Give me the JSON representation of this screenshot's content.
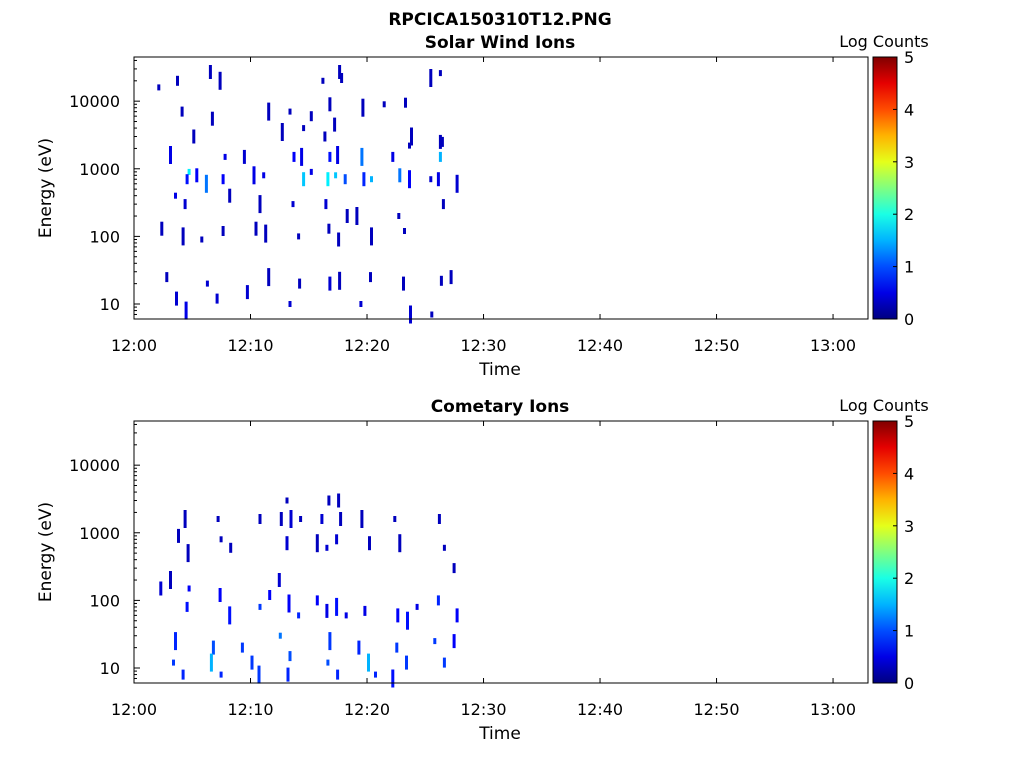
{
  "figure_title": "RPCICA150310T12.PNG",
  "chart_data": [
    {
      "type": "heatmap",
      "title": "Solar Wind Ions",
      "xlabel": "Time",
      "ylabel": "Energy (eV)",
      "yscale": "log",
      "ylim": [
        6,
        45000
      ],
      "xlim": [
        "12:00",
        "13:03"
      ],
      "x_tick_labels": [
        "12:00",
        "12:10",
        "12:20",
        "12:30",
        "12:40",
        "12:50",
        "13:00"
      ],
      "y_tick_labels": [
        "10",
        "100",
        "1000",
        "10000"
      ],
      "colorbar": {
        "label": "Log Counts",
        "min": 0,
        "max": 5,
        "ticks": [
          "0",
          "1",
          "2",
          "3",
          "4",
          "5"
        ],
        "colormap": "jet"
      },
      "data_time_range": [
        "12:02",
        "12:27"
      ],
      "cells": [
        {
          "t": "12:02",
          "e": 16000,
          "v": 0.3
        },
        {
          "t": "12:03",
          "e": 20000,
          "v": 0.3
        },
        {
          "t": "12:06",
          "e": 27000,
          "v": 0.3
        },
        {
          "t": "12:07",
          "e": 20000,
          "v": 0.3
        },
        {
          "t": "12:16",
          "e": 20000,
          "v": 0.3
        },
        {
          "t": "12:17",
          "e": 22000,
          "v": 0.3
        },
        {
          "t": "12:17",
          "e": 27000,
          "v": 0.3
        },
        {
          "t": "12:25",
          "e": 22000,
          "v": 0.3
        },
        {
          "t": "12:26",
          "e": 26000,
          "v": 0.3
        },
        {
          "t": "12:04",
          "e": 7000,
          "v": 0.3
        },
        {
          "t": "12:06",
          "e": 5500,
          "v": 0.3
        },
        {
          "t": "12:11",
          "e": 7000,
          "v": 0.3
        },
        {
          "t": "12:13",
          "e": 7000,
          "v": 0.3
        },
        {
          "t": "12:15",
          "e": 6000,
          "v": 0.3
        },
        {
          "t": "12:16",
          "e": 9000,
          "v": 0.3
        },
        {
          "t": "12:19",
          "e": 8000,
          "v": 0.3
        },
        {
          "t": "12:21",
          "e": 9000,
          "v": 0.3
        },
        {
          "t": "12:23",
          "e": 9500,
          "v": 0.3
        },
        {
          "t": "12:05",
          "e": 3000,
          "v": 0.3
        },
        {
          "t": "12:12",
          "e": 3500,
          "v": 0.3
        },
        {
          "t": "12:14",
          "e": 4000,
          "v": 0.3
        },
        {
          "t": "12:16",
          "e": 3000,
          "v": 0.3
        },
        {
          "t": "12:17",
          "e": 4500,
          "v": 0.3
        },
        {
          "t": "12:23",
          "e": 3000,
          "v": 0.3
        },
        {
          "t": "12:23",
          "e": 2200,
          "v": 0.3
        },
        {
          "t": "12:26",
          "e": 2500,
          "v": 0.3
        },
        {
          "t": "12:26",
          "e": 2500,
          "v": 0.3
        },
        {
          "t": "12:03",
          "e": 1600,
          "v": 0.5
        },
        {
          "t": "12:04",
          "e": 900,
          "v": 1.8
        },
        {
          "t": "12:04",
          "e": 700,
          "v": 0.7
        },
        {
          "t": "12:05",
          "e": 800,
          "v": 0.6
        },
        {
          "t": "12:06",
          "e": 600,
          "v": 1.2
        },
        {
          "t": "12:07",
          "e": 1500,
          "v": 0.5
        },
        {
          "t": "12:07",
          "e": 700,
          "v": 0.6
        },
        {
          "t": "12:09",
          "e": 1500,
          "v": 0.4
        },
        {
          "t": "12:10",
          "e": 800,
          "v": 0.5
        },
        {
          "t": "12:11",
          "e": 800,
          "v": 0.5
        },
        {
          "t": "12:13",
          "e": 1500,
          "v": 0.6
        },
        {
          "t": "12:14",
          "e": 700,
          "v": 1.6
        },
        {
          "t": "12:14",
          "e": 1500,
          "v": 0.5
        },
        {
          "t": "12:15",
          "e": 900,
          "v": 0.5
        },
        {
          "t": "12:16",
          "e": 1500,
          "v": 0.7
        },
        {
          "t": "12:16",
          "e": 700,
          "v": 1.8
        },
        {
          "t": "12:17",
          "e": 1600,
          "v": 0.5
        },
        {
          "t": "12:17",
          "e": 800,
          "v": 1.6
        },
        {
          "t": "12:18",
          "e": 700,
          "v": 1.0
        },
        {
          "t": "12:19",
          "e": 700,
          "v": 0.8
        },
        {
          "t": "12:19",
          "e": 1500,
          "v": 1.2
        },
        {
          "t": "12:20",
          "e": 700,
          "v": 1.5
        },
        {
          "t": "12:22",
          "e": 1500,
          "v": 0.5
        },
        {
          "t": "12:22",
          "e": 800,
          "v": 1.2
        },
        {
          "t": "12:23",
          "e": 700,
          "v": 0.6
        },
        {
          "t": "12:25",
          "e": 700,
          "v": 0.4
        },
        {
          "t": "12:26",
          "e": 1500,
          "v": 1.5
        },
        {
          "t": "12:26",
          "e": 700,
          "v": 0.5
        },
        {
          "t": "12:27",
          "e": 600,
          "v": 0.4
        },
        {
          "t": "12:03",
          "e": 400,
          "v": 0.5
        },
        {
          "t": "12:04",
          "e": 300,
          "v": 0.4
        },
        {
          "t": "12:08",
          "e": 400,
          "v": 0.3
        },
        {
          "t": "12:10",
          "e": 300,
          "v": 0.3
        },
        {
          "t": "12:13",
          "e": 300,
          "v": 0.4
        },
        {
          "t": "12:16",
          "e": 300,
          "v": 0.4
        },
        {
          "t": "12:18",
          "e": 200,
          "v": 0.3
        },
        {
          "t": "12:19",
          "e": 200,
          "v": 0.3
        },
        {
          "t": "12:22",
          "e": 200,
          "v": 0.3
        },
        {
          "t": "12:26",
          "e": 300,
          "v": 0.3
        },
        {
          "t": "12:02",
          "e": 130,
          "v": 0.3
        },
        {
          "t": "12:04",
          "e": 100,
          "v": 0.3
        },
        {
          "t": "12:05",
          "e": 90,
          "v": 0.3
        },
        {
          "t": "12:07",
          "e": 120,
          "v": 0.3
        },
        {
          "t": "12:10",
          "e": 130,
          "v": 0.3
        },
        {
          "t": "12:11",
          "e": 110,
          "v": 0.3
        },
        {
          "t": "12:14",
          "e": 100,
          "v": 0.3
        },
        {
          "t": "12:16",
          "e": 130,
          "v": 0.3
        },
        {
          "t": "12:17",
          "e": 90,
          "v": 0.3
        },
        {
          "t": "12:20",
          "e": 100,
          "v": 0.3
        },
        {
          "t": "12:23",
          "e": 120,
          "v": 0.3
        },
        {
          "t": "12:02",
          "e": 25,
          "v": 0.3
        },
        {
          "t": "12:03",
          "e": 12,
          "v": 0.4
        },
        {
          "t": "12:04",
          "e": 8,
          "v": 0.5
        },
        {
          "t": "12:06",
          "e": 20,
          "v": 0.4
        },
        {
          "t": "12:07",
          "e": 12,
          "v": 0.4
        },
        {
          "t": "12:09",
          "e": 15,
          "v": 0.4
        },
        {
          "t": "12:11",
          "e": 25,
          "v": 0.3
        },
        {
          "t": "12:13",
          "e": 10,
          "v": 0.4
        },
        {
          "t": "12:14",
          "e": 20,
          "v": 0.3
        },
        {
          "t": "12:16",
          "e": 20,
          "v": 0.4
        },
        {
          "t": "12:17",
          "e": 22,
          "v": 0.3
        },
        {
          "t": "12:19",
          "e": 10,
          "v": 0.4
        },
        {
          "t": "12:20",
          "e": 25,
          "v": 0.3
        },
        {
          "t": "12:23",
          "e": 20,
          "v": 0.3
        },
        {
          "t": "12:23",
          "e": 7,
          "v": 0.4
        },
        {
          "t": "12:25",
          "e": 7,
          "v": 0.3
        },
        {
          "t": "12:26",
          "e": 22,
          "v": 0.3
        },
        {
          "t": "12:27",
          "e": 25,
          "v": 0.3
        }
      ]
    },
    {
      "type": "heatmap",
      "title": "Cometary Ions",
      "xlabel": "Time",
      "ylabel": "Energy (eV)",
      "yscale": "log",
      "ylim": [
        6,
        45000
      ],
      "xlim": [
        "12:00",
        "13:03"
      ],
      "x_tick_labels": [
        "12:00",
        "12:10",
        "12:20",
        "12:30",
        "12:40",
        "12:50",
        "13:00"
      ],
      "y_tick_labels": [
        "10",
        "100",
        "1000",
        "10000"
      ],
      "colorbar": {
        "label": "Log Counts",
        "min": 0,
        "max": 5,
        "ticks": [
          "0",
          "1",
          "2",
          "3",
          "4",
          "5"
        ],
        "colormap": "jet"
      },
      "data_time_range": [
        "12:02",
        "12:27"
      ],
      "cells": [
        {
          "t": "12:13",
          "e": 3000,
          "v": 0.3
        },
        {
          "t": "12:16",
          "e": 3000,
          "v": 0.3
        },
        {
          "t": "12:17",
          "e": 3000,
          "v": 0.3
        },
        {
          "t": "12:04",
          "e": 1600,
          "v": 0.3
        },
        {
          "t": "12:07",
          "e": 1600,
          "v": 0.3
        },
        {
          "t": "12:10",
          "e": 1600,
          "v": 0.3
        },
        {
          "t": "12:12",
          "e": 1600,
          "v": 0.3
        },
        {
          "t": "12:13",
          "e": 1600,
          "v": 0.4
        },
        {
          "t": "12:14",
          "e": 1600,
          "v": 0.3
        },
        {
          "t": "12:16",
          "e": 1600,
          "v": 0.4
        },
        {
          "t": "12:17",
          "e": 1600,
          "v": 0.3
        },
        {
          "t": "12:19",
          "e": 1600,
          "v": 0.3
        },
        {
          "t": "12:22",
          "e": 1600,
          "v": 0.3
        },
        {
          "t": "12:26",
          "e": 1600,
          "v": 0.3
        },
        {
          "t": "12:03",
          "e": 900,
          "v": 0.3
        },
        {
          "t": "12:04",
          "e": 500,
          "v": 0.3
        },
        {
          "t": "12:07",
          "e": 800,
          "v": 0.3
        },
        {
          "t": "12:08",
          "e": 600,
          "v": 0.3
        },
        {
          "t": "12:13",
          "e": 700,
          "v": 0.4
        },
        {
          "t": "12:15",
          "e": 700,
          "v": 0.3
        },
        {
          "t": "12:16",
          "e": 600,
          "v": 0.4
        },
        {
          "t": "12:17",
          "e": 800,
          "v": 0.4
        },
        {
          "t": "12:20",
          "e": 700,
          "v": 0.3
        },
        {
          "t": "12:22",
          "e": 700,
          "v": 0.3
        },
        {
          "t": "12:26",
          "e": 600,
          "v": 0.3
        },
        {
          "t": "12:27",
          "e": 300,
          "v": 0.3
        },
        {
          "t": "12:02",
          "e": 150,
          "v": 0.4
        },
        {
          "t": "12:03",
          "e": 200,
          "v": 0.3
        },
        {
          "t": "12:04",
          "e": 150,
          "v": 0.6
        },
        {
          "t": "12:04",
          "e": 80,
          "v": 0.7
        },
        {
          "t": "12:07",
          "e": 120,
          "v": 0.6
        },
        {
          "t": "12:08",
          "e": 60,
          "v": 0.7
        },
        {
          "t": "12:10",
          "e": 80,
          "v": 0.9
        },
        {
          "t": "12:11",
          "e": 120,
          "v": 0.6
        },
        {
          "t": "12:12",
          "e": 200,
          "v": 0.4
        },
        {
          "t": "12:13",
          "e": 90,
          "v": 0.6
        },
        {
          "t": "12:14",
          "e": 60,
          "v": 0.8
        },
        {
          "t": "12:15",
          "e": 100,
          "v": 0.6
        },
        {
          "t": "12:16",
          "e": 70,
          "v": 0.5
        },
        {
          "t": "12:17",
          "e": 80,
          "v": 0.7
        },
        {
          "t": "12:18",
          "e": 60,
          "v": 0.5
        },
        {
          "t": "12:19",
          "e": 70,
          "v": 0.5
        },
        {
          "t": "12:22",
          "e": 60,
          "v": 0.6
        },
        {
          "t": "12:23",
          "e": 50,
          "v": 0.7
        },
        {
          "t": "12:24",
          "e": 80,
          "v": 0.5
        },
        {
          "t": "12:26",
          "e": 100,
          "v": 0.8
        },
        {
          "t": "12:27",
          "e": 60,
          "v": 0.6
        },
        {
          "t": "12:03",
          "e": 25,
          "v": 0.8
        },
        {
          "t": "12:03",
          "e": 12,
          "v": 0.9
        },
        {
          "t": "12:04",
          "e": 8,
          "v": 0.8
        },
        {
          "t": "12:06",
          "e": 20,
          "v": 1.0
        },
        {
          "t": "12:06",
          "e": 12,
          "v": 1.5
        },
        {
          "t": "12:07",
          "e": 8,
          "v": 0.8
        },
        {
          "t": "12:09",
          "e": 20,
          "v": 0.9
        },
        {
          "t": "12:10",
          "e": 12,
          "v": 0.9
        },
        {
          "t": "12:10",
          "e": 8,
          "v": 0.9
        },
        {
          "t": "12:12",
          "e": 30,
          "v": 1.2
        },
        {
          "t": "12:13",
          "e": 15,
          "v": 1.0
        },
        {
          "t": "12:13",
          "e": 8,
          "v": 0.8
        },
        {
          "t": "12:16",
          "e": 25,
          "v": 0.9
        },
        {
          "t": "12:16",
          "e": 12,
          "v": 1.0
        },
        {
          "t": "12:17",
          "e": 8,
          "v": 0.8
        },
        {
          "t": "12:19",
          "e": 20,
          "v": 0.8
        },
        {
          "t": "12:20",
          "e": 12,
          "v": 1.5
        },
        {
          "t": "12:20",
          "e": 8,
          "v": 0.8
        },
        {
          "t": "12:22",
          "e": 20,
          "v": 0.9
        },
        {
          "t": "12:23",
          "e": 12,
          "v": 0.9
        },
        {
          "t": "12:22",
          "e": 7,
          "v": 0.7
        },
        {
          "t": "12:25",
          "e": 25,
          "v": 0.9
        },
        {
          "t": "12:26",
          "e": 12,
          "v": 0.9
        },
        {
          "t": "12:27",
          "e": 25,
          "v": 0.6
        }
      ]
    }
  ]
}
